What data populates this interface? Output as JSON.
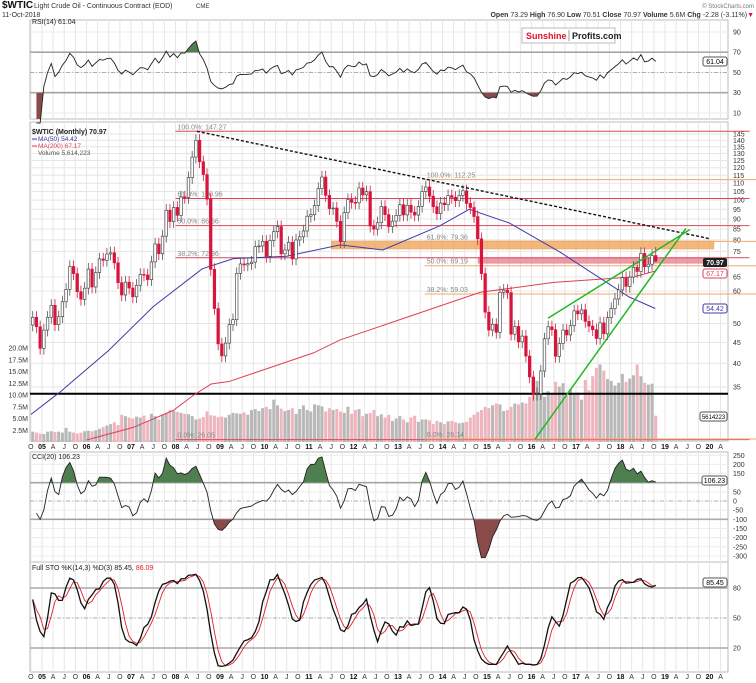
{
  "header": {
    "symbol": "$WTIC",
    "name": "Light Crude Oil - Continuous Contract (EOD)",
    "exchange": "CME",
    "date": "11-Oct-2018",
    "copyright": "© StockCharts.com",
    "quote": {
      "open_label": "Open",
      "open": "73.29",
      "high_label": "High",
      "high": "76.90",
      "low_label": "Low",
      "low": "70.51",
      "close_label": "Close",
      "close": "70.97",
      "volume_label": "Volume",
      "volume": "5.6M",
      "chg_label": "Chg",
      "chg": "-2.28 (-3.11%)",
      "chg_arrow": "▼"
    }
  },
  "watermark": {
    "part1": "Sunshine",
    "part2": "Profits.com",
    "color1": "#e0102a"
  },
  "colors": {
    "down_candle": "#d8143c",
    "up_candle": "#ffffff",
    "ma50": "#3c3ca8",
    "ma200": "#e04058",
    "fib_red": "#d8485c",
    "fib_orange": "#f0a868",
    "band_orange": "#f0a050",
    "band_red": "#e87a8c",
    "trend_green": "#22b822",
    "vol_up": "#b8b8b8",
    "vol_down": "#f0b4bc",
    "ob_fill": "#4f7f4f",
    "os_fill": "#8a4a4a",
    "stoD": "#e0202a"
  },
  "chart_data": [
    {
      "type": "candlestick",
      "panel": "price",
      "title": "$WTIC (Monthly) 70.97",
      "scale": "log",
      "ylim": [
        26,
        150
      ],
      "y_ticks": [
        145,
        140,
        135,
        130,
        125,
        120,
        115,
        110,
        105,
        100,
        95,
        90,
        85,
        80,
        75,
        65,
        60,
        50,
        45,
        40,
        35
      ],
      "x_tick_labels": [
        "O",
        "05",
        "A",
        "J",
        "O",
        "06",
        "A",
        "J",
        "O",
        "07",
        "A",
        "J",
        "O",
        "08",
        "A",
        "J",
        "O",
        "09",
        "A",
        "J",
        "O",
        "10",
        "A",
        "J",
        "O",
        "11",
        "A",
        "J",
        "O",
        "12",
        "A",
        "J",
        "O",
        "13",
        "A",
        "J",
        "O",
        "14",
        "A",
        "J",
        "O",
        "15",
        "A",
        "J",
        "O",
        "16",
        "A",
        "J",
        "O",
        "17",
        "A",
        "J",
        "O",
        "18",
        "A",
        "J",
        "O",
        "19",
        "A",
        "J",
        "O",
        "20",
        "A"
      ],
      "start_month": "2004-10",
      "closes": [
        51.8,
        49.1,
        43.5,
        48.2,
        51.8,
        55.4,
        49.7,
        51.97,
        56.5,
        60.6,
        68.9,
        66.2,
        59.8,
        57.3,
        61.0,
        67.9,
        61.4,
        66.6,
        71.9,
        71.3,
        73.9,
        74.4,
        70.3,
        62.9,
        58.7,
        63.1,
        61.05,
        58.1,
        62.0,
        65.9,
        65.7,
        64.0,
        70.7,
        78.2,
        74.0,
        81.7,
        94.5,
        88.7,
        96.0,
        91.8,
        101.8,
        101.6,
        113.5,
        127.4,
        140.0,
        124.1,
        115.5,
        100.6,
        67.8,
        54.4,
        44.6,
        41.7,
        44.8,
        49.7,
        51.1,
        66.3,
        69.9,
        69.5,
        70.0,
        70.6,
        77.0,
        77.3,
        79.4,
        72.9,
        79.7,
        83.8,
        86.2,
        73.97,
        75.6,
        78.95,
        71.9,
        79.97,
        81.4,
        84.1,
        91.4,
        92.2,
        96.97,
        106.7,
        113.9,
        102.7,
        95.4,
        95.7,
        88.8,
        79.2,
        93.2,
        100.4,
        98.8,
        98.5,
        107.1,
        103.0,
        104.9,
        86.5,
        84.96,
        88.1,
        96.5,
        92.2,
        86.2,
        88.9,
        91.8,
        97.5,
        92.05,
        97.2,
        93.5,
        91.97,
        96.6,
        105.0,
        107.7,
        102.3,
        96.4,
        92.7,
        98.4,
        97.5,
        102.6,
        101.6,
        99.7,
        102.7,
        105.4,
        98.2,
        95.96,
        91.2,
        80.5,
        66.2,
        53.3,
        48.2,
        49.8,
        47.6,
        59.6,
        60.3,
        59.5,
        47.1,
        49.2,
        45.1,
        46.6,
        41.65,
        37.04,
        33.6,
        33.75,
        38.3,
        45.9,
        49.1,
        48.3,
        41.6,
        44.7,
        48.2,
        46.9,
        49.4,
        53.7,
        52.8,
        54.0,
        50.6,
        49.3,
        48.3,
        46.0,
        50.2,
        47.2,
        51.7,
        54.4,
        57.4,
        60.4,
        64.7,
        61.6,
        64.9,
        68.6,
        67.0,
        74.15,
        68.8,
        69.8,
        73.25,
        70.97
      ],
      "last_candle": {
        "open": 73.29,
        "high": 76.9,
        "low": 70.51,
        "close": 70.97
      },
      "volume_millions": [
        2.2,
        2.0,
        1.8,
        1.7,
        2.2,
        2.3,
        2.1,
        2.2,
        2.0,
        3.0,
        2.2,
        2.0,
        1.8,
        2.0,
        2.3,
        2.4,
        2.3,
        2.5,
        2.8,
        3.2,
        3.5,
        3.8,
        4.2,
        3.6,
        5.8,
        5.5,
        5.2,
        5.0,
        5.4,
        5.2,
        5.6,
        4.5,
        6.0,
        5.5,
        4.8,
        5.8,
        6.2,
        6.8,
        6.6,
        6.4,
        6.2,
        6.0,
        5.9,
        5.5,
        4.8,
        5.0,
        5.3,
        6.5,
        5.7,
        5.6,
        5.3,
        5.4,
        5.2,
        5.8,
        6.2,
        6.1,
        6.0,
        6.3,
        5.8,
        6.8,
        7.0,
        6.6,
        7.2,
        7.5,
        7.0,
        9.0,
        7.8,
        7.1,
        6.6,
        6.8,
        7.2,
        6.0,
        7.0,
        7.8,
        6.8,
        6.5,
        8.0,
        7.8,
        7.6,
        6.5,
        7.2,
        6.8,
        7.0,
        6.5,
        6.2,
        7.5,
        6.0,
        6.8,
        7.0,
        5.5,
        6.0,
        6.2,
        6.8,
        5.5,
        5.9,
        5.2,
        5.8,
        4.5,
        5.0,
        5.5,
        4.8,
        4.2,
        5.2,
        5.6,
        4.3,
        4.8,
        4.8,
        4.6,
        3.8,
        4.5,
        4.2,
        3.8,
        4.4,
        4.5,
        4.2,
        4.0,
        4.1,
        4.3,
        5.2,
        5.8,
        6.4,
        6.8,
        7.5,
        7.2,
        7.8,
        8.2,
        8.0,
        6.6,
        6.8,
        7.5,
        8.2,
        8.0,
        8.4,
        8.2,
        9.6,
        11.5,
        13.0,
        10.0,
        9.6,
        10.8,
        10.3,
        12.8,
        11.8,
        12.5,
        9.8,
        11.2,
        10.2,
        10.5,
        9.0,
        13.2,
        11.0,
        14.0,
        15.8,
        16.5,
        15.2,
        13.4,
        13.0,
        12.0,
        12.6,
        14.5,
        12.8,
        13.5,
        14.2,
        16.5,
        14.0,
        12.6,
        12.2,
        12.4,
        5.6
      ],
      "volume_ticks": [
        "20.0M",
        "17.5M",
        "15.0M",
        "12.5M",
        "10.0M",
        "7.5M",
        "5.0M",
        "2.5M"
      ],
      "volume_tick_values": [
        20,
        17.5,
        15,
        12.5,
        10,
        7.5,
        5,
        2.5
      ],
      "legend": {
        "main": "$WTIC (Monthly) 70.97",
        "ma50": "MA(50) 54.42",
        "ma200": "MA(200) 67.17",
        "volume": "Volume 5,614,223"
      },
      "badges": {
        "close": "70.97",
        "ma200": "67.17",
        "ma50": "54.42",
        "volume": "5614223"
      },
      "ma50": [
        [
          2004.75,
          30
        ],
        [
          2005.4,
          34
        ],
        [
          2006.5,
          43
        ],
        [
          2007.5,
          55
        ],
        [
          2008.6,
          68
        ],
        [
          2009.3,
          72
        ],
        [
          2010.5,
          73
        ],
        [
          2011.7,
          77.8
        ],
        [
          2012.66,
          75.6
        ],
        [
          2013.94,
          86.6
        ],
        [
          2014.6,
          95
        ],
        [
          2015.5,
          88
        ],
        [
          2016.64,
          74.7
        ],
        [
          2018.2,
          58
        ],
        [
          2018.78,
          54.42
        ]
      ],
      "ma200": [
        [
          2006.0,
          26
        ],
        [
          2007.05,
          27.9
        ],
        [
          2007.95,
          30.7
        ],
        [
          2008.4,
          33.4
        ],
        [
          2008.8,
          35.6
        ],
        [
          2009.2,
          36.1
        ],
        [
          2011.1,
          42.4
        ],
        [
          2011.7,
          45.6
        ],
        [
          2014.85,
          59.6
        ],
        [
          2016.5,
          63
        ],
        [
          2018.3,
          65
        ],
        [
          2018.78,
          67.17
        ]
      ],
      "fibonacci": [
        {
          "levels": [
            {
              "label": "100.0%: 147.27",
              "price": 147.27,
              "color": "red"
            },
            {
              "label": "61.8%: 100.96",
              "price": 100.96,
              "color": "red"
            },
            {
              "label": "50.0%: 86.66",
              "price": 86.66,
              "color": "red"
            },
            {
              "label": "38.2%: 72.36",
              "price": 72.36,
              "color": "red"
            },
            {
              "label": "0.0%: 26.05",
              "price": 26.05,
              "color": "red"
            }
          ],
          "from": 2008.0,
          "to": 2020.9
        },
        {
          "levels": [
            {
              "label": "100.0%: 112.25",
              "price": 112.25,
              "color": "orange"
            },
            {
              "label": "61.8%: 79.36",
              "price": 79.36,
              "color": "orange"
            },
            {
              "label": "50.0%: 69.19",
              "price": 69.19,
              "color": "orange"
            },
            {
              "label": "38.2%: 59.03",
              "price": 59.03,
              "color": "orange"
            },
            {
              "label": "0.0%: 26.14",
              "price": 26.14,
              "color": "orange"
            }
          ],
          "from": 2013.6,
          "to": 2021.7
        }
      ],
      "bands": [
        {
          "from": 2011.5,
          "to": 2020.1,
          "low": 76.0,
          "high": 79.5,
          "color": "orange"
        },
        {
          "from": 2014.8,
          "to": 2020.1,
          "low": 70.2,
          "high": 72.4,
          "color": "red"
        }
      ],
      "support_line": 33.7,
      "trendlines": [
        {
          "style": "dashed-black",
          "p1": [
            2008.48,
            147.27
          ],
          "p2": [
            2019.99,
            80.6
          ]
        },
        {
          "style": "green",
          "p1": [
            2016.08,
            26.14
          ],
          "p2": [
            2019.47,
            85.3
          ]
        },
        {
          "style": "green",
          "p1": [
            2016.37,
            51.5
          ],
          "p2": [
            2019.56,
            84.8
          ]
        }
      ]
    },
    {
      "type": "line",
      "panel": "rsi",
      "title": "RSI(14) 61.04",
      "ylim": [
        0,
        100
      ],
      "y_ticks": [
        90,
        70,
        50,
        30,
        10
      ],
      "levels": [
        70,
        50,
        30
      ],
      "badge": "61.04"
    },
    {
      "type": "line",
      "panel": "cci",
      "title": "CCI(20) 106.23",
      "ylim": [
        -300,
        250
      ],
      "y_ticks": [
        250,
        200,
        150,
        50,
        0,
        -50,
        -100,
        -150,
        -200,
        -250,
        -300
      ],
      "levels": [
        100,
        0,
        -100
      ],
      "badge": "106.23"
    },
    {
      "type": "line",
      "panel": "sto",
      "title_k": "Full STO %K(14,3) %D(3) 85.45,",
      "title_d": "86.09",
      "ylim": [
        0,
        100
      ],
      "y_ticks": [
        80,
        50,
        20
      ],
      "levels": [
        80,
        50,
        20
      ],
      "badge": "85.45"
    }
  ]
}
